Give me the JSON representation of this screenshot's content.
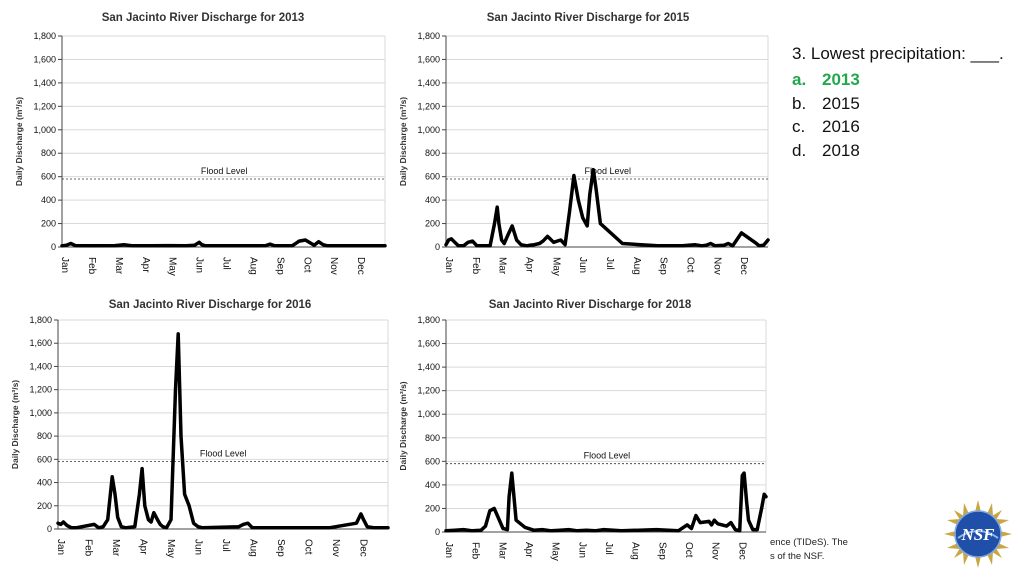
{
  "question": {
    "text": "3. Lowest precipitation: ___.",
    "options": [
      {
        "letter": "a.",
        "label": "2013",
        "correct": true
      },
      {
        "letter": "b.",
        "label": "2015",
        "correct": false
      },
      {
        "letter": "c.",
        "label": "2016",
        "correct": false
      },
      {
        "letter": "d.",
        "label": "2018",
        "correct": false
      }
    ],
    "correct_color": "#22a84a"
  },
  "footer": {
    "line1": "ence (TIDeS). The",
    "line2": "s of the NSF."
  },
  "logo": {
    "text": "NSF",
    "icon": "nsf-logo-icon"
  },
  "chart_data": [
    {
      "type": "line",
      "title": "San Jacinto River Discharge for 2013",
      "ylabel": "Daily Discharge (m³/s)",
      "ylim": [
        0,
        1800
      ],
      "yticks": [
        "0",
        "200",
        "400",
        "600",
        "800",
        "1,000",
        "1,200",
        "1,400",
        "1,600",
        "1,800"
      ],
      "months": [
        "Jan",
        "Feb",
        "Mar",
        "Apr",
        "May",
        "Jun",
        "Jul",
        "Aug",
        "Sep",
        "Oct",
        "Nov",
        "Dec"
      ],
      "flood_level": 580,
      "flood_label": "Flood Level",
      "series": [
        {
          "x": [
            0,
            5,
            10,
            15,
            25,
            40,
            60,
            70,
            80,
            100,
            120,
            140,
            150,
            155,
            158,
            162,
            170,
            200,
            220,
            230,
            235,
            240,
            260,
            265,
            268,
            275,
            285,
            290,
            295,
            300,
            330,
            365
          ],
          "y": [
            10,
            15,
            30,
            12,
            10,
            10,
            12,
            20,
            10,
            10,
            12,
            10,
            15,
            40,
            20,
            10,
            10,
            10,
            10,
            12,
            25,
            12,
            10,
            35,
            50,
            60,
            15,
            45,
            20,
            10,
            10,
            10
          ]
        }
      ]
    },
    {
      "type": "line",
      "title": "San Jacinto River Discharge for 2015",
      "ylabel": "Daily Discharge (m³/s)",
      "ylim": [
        0,
        1800
      ],
      "yticks": [
        "0",
        "200",
        "400",
        "600",
        "800",
        "1,000",
        "1,200",
        "1,400",
        "1,600",
        "1,800"
      ],
      "months": [
        "Jan",
        "Feb",
        "Mar",
        "Apr",
        "May",
        "Jun",
        "Jul",
        "Aug",
        "Sep",
        "Oct",
        "Nov",
        "Dec"
      ],
      "flood_level": 580,
      "flood_label": "Flood Level",
      "series": [
        {
          "x": [
            0,
            3,
            6,
            10,
            14,
            20,
            25,
            30,
            35,
            50,
            55,
            58,
            60,
            63,
            66,
            70,
            75,
            80,
            85,
            88,
            92,
            95,
            100,
            106,
            110,
            115,
            118,
            122,
            126,
            130,
            135,
            140,
            145,
            150,
            155,
            160,
            163,
            167,
            170,
            175,
            200,
            240,
            250,
            260,
            268,
            275,
            282,
            290,
            295,
            300,
            305,
            315,
            320,
            325,
            335,
            350,
            355,
            360,
            365
          ],
          "y": [
            20,
            60,
            70,
            40,
            10,
            10,
            40,
            50,
            10,
            10,
            200,
            340,
            200,
            60,
            30,
            100,
            180,
            60,
            20,
            15,
            10,
            15,
            20,
            30,
            50,
            90,
            70,
            40,
            50,
            60,
            20,
            300,
            610,
            400,
            250,
            180,
            450,
            660,
            500,
            200,
            30,
            10,
            10,
            10,
            10,
            15,
            20,
            10,
            15,
            30,
            10,
            15,
            30,
            10,
            120,
            40,
            10,
            15,
            60
          ]
        }
      ]
    },
    {
      "type": "line",
      "title": "San Jacinto River Discharge for 2016",
      "ylabel": "Daily Discharge (m³/s)",
      "ylim": [
        0,
        1800
      ],
      "yticks": [
        "0",
        "200",
        "400",
        "600",
        "800",
        "1,000",
        "1,200",
        "1,400",
        "1,600",
        "1,800"
      ],
      "months": [
        "Jan",
        "Feb",
        "Mar",
        "Apr",
        "May",
        "Jun",
        "Jul",
        "Aug",
        "Sep",
        "Oct",
        "Nov",
        "Dec"
      ],
      "flood_level": 580,
      "flood_label": "Flood Level",
      "series": [
        {
          "x": [
            0,
            3,
            6,
            10,
            15,
            20,
            40,
            45,
            50,
            55,
            60,
            63,
            66,
            70,
            75,
            85,
            90,
            93,
            96,
            100,
            103,
            106,
            110,
            113,
            116,
            120,
            125,
            130,
            133,
            136,
            140,
            145,
            150,
            155,
            160,
            200,
            205,
            210,
            215,
            250,
            300,
            330,
            335,
            338,
            342,
            350,
            365
          ],
          "y": [
            50,
            40,
            60,
            30,
            10,
            10,
            40,
            10,
            20,
            80,
            450,
            300,
            100,
            20,
            10,
            20,
            300,
            520,
            200,
            80,
            60,
            140,
            80,
            40,
            20,
            10,
            80,
            1200,
            1680,
            800,
            300,
            200,
            50,
            20,
            10,
            20,
            40,
            50,
            10,
            10,
            10,
            50,
            130,
            80,
            20,
            10,
            10
          ]
        }
      ]
    },
    {
      "type": "line",
      "title": "San Jacinto River Discharge for 2018",
      "ylabel": "Daily Discharge (m³/s)",
      "ylim": [
        0,
        1800
      ],
      "yticks": [
        "0",
        "200",
        "400",
        "600",
        "800",
        "1,000",
        "1,200",
        "1,400",
        "1,600",
        "1,800"
      ],
      "months": [
        "Jan",
        "Feb",
        "Mar",
        "Apr",
        "May",
        "Jun",
        "Jul",
        "Aug",
        "Sep",
        "Oct",
        "Nov",
        "Dec"
      ],
      "flood_level": 580,
      "flood_label": "Flood Level",
      "series": [
        {
          "x": [
            0,
            10,
            20,
            30,
            40,
            45,
            50,
            55,
            65,
            70,
            72,
            75,
            80,
            90,
            100,
            110,
            120,
            130,
            140,
            150,
            160,
            170,
            180,
            200,
            220,
            240,
            265,
            275,
            280,
            285,
            290,
            300,
            303,
            306,
            310,
            320,
            325,
            330,
            335,
            338,
            340,
            343,
            345,
            350,
            355,
            360,
            363,
            365
          ],
          "y": [
            10,
            15,
            20,
            10,
            15,
            50,
            180,
            200,
            30,
            20,
            300,
            500,
            100,
            40,
            15,
            20,
            10,
            15,
            20,
            10,
            15,
            10,
            20,
            10,
            15,
            20,
            10,
            60,
            30,
            140,
            80,
            90,
            60,
            100,
            70,
            50,
            80,
            20,
            10,
            480,
            500,
            250,
            100,
            20,
            20,
            200,
            320,
            300
          ]
        }
      ]
    }
  ]
}
